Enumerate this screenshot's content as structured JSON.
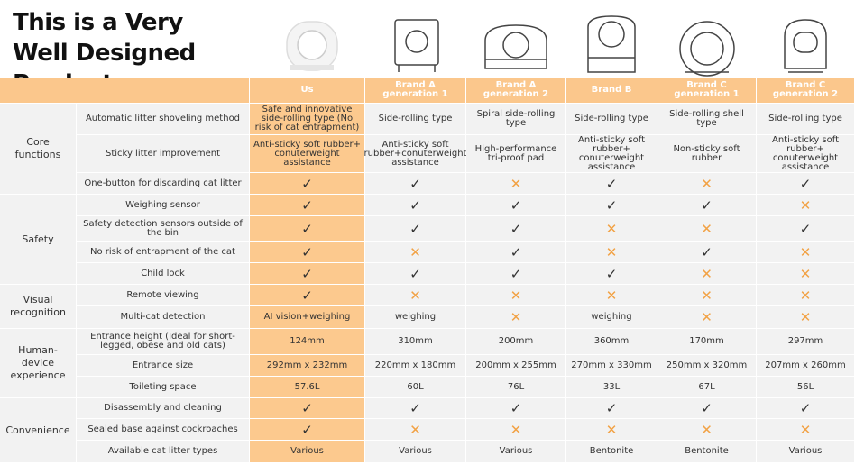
{
  "header": {
    "title": "This is a Very Well Designed Product"
  },
  "table": {
    "columns": [
      "Us",
      "Brand A generation 1",
      "Brand A generation 2",
      "Brand B",
      "Brand C generation 1",
      "Brand C generation 2"
    ],
    "cross": "✕",
    "cross_color": "#f2a245",
    "text_color": "#333333",
    "groups": [
      {
        "label": "Core functions",
        "rows": [
          {
            "feature": "Automatic litter shoveling method",
            "cells": [
              "Safe and innovative side-rolling type (No risk of cat entrapment)",
              "Side-rolling type",
              "Spiral side-rolling type",
              "Side-rolling type",
              "Side-rolling shell type",
              "Side-rolling type"
            ]
          },
          {
            "feature": "Sticky litter improvement",
            "cells": [
              "Anti-sticky soft rubber+ conuterweight assistance",
              "Anti-sticky soft rubber+conuterweight assistance",
              "High-performance tri-proof pad",
              "Anti-sticky soft rubber+ conuterweight assistance",
              "Non-sticky soft rubber",
              "Anti-sticky soft rubber+ conuterweight assistance"
            ]
          },
          {
            "feature": "One-button for discarding cat litter",
            "cells": [
              "✓",
              "✓",
              "✕",
              "✓",
              "✕",
              "✓"
            ]
          }
        ]
      },
      {
        "label": "Safety",
        "rows": [
          {
            "feature": "Weighing sensor",
            "cells": [
              "✓",
              "✓",
              "✓",
              "✓",
              "✓",
              "✕"
            ]
          },
          {
            "feature": "Safety detection sensors outside of the bin",
            "cells": [
              "✓",
              "✓",
              "✓",
              "✕",
              "✕",
              "✓"
            ]
          },
          {
            "feature": "No risk of entrapment of the cat",
            "cells": [
              "✓",
              "✕",
              "✓",
              "✕",
              "✓",
              "✕"
            ]
          },
          {
            "feature": "Child lock",
            "cells": [
              "✓",
              "✓",
              "✓",
              "✓",
              "✕",
              "✕"
            ]
          }
        ]
      },
      {
        "label": "Visual recognition",
        "rows": [
          {
            "feature": "Remote viewing",
            "cells": [
              "✓",
              "✕",
              "✕",
              "✕",
              "✕",
              "✕"
            ]
          },
          {
            "feature": "Multi-cat detection",
            "cells": [
              "AI vision+weighing",
              "weighing",
              "✕",
              "weighing",
              "✕",
              "✕"
            ]
          }
        ]
      },
      {
        "label": "Human-device experience",
        "rows": [
          {
            "feature": "Entrance height (Ideal for short-legged, obese and old cats)",
            "cells": [
              "124mm",
              "310mm",
              "200mm",
              "360mm",
              "170mm",
              "297mm"
            ]
          },
          {
            "feature": "Entrance size",
            "cells": [
              "292mm x 232mm",
              "220mm x 180mm",
              "200mm x 255mm",
              "270mm x 330mm",
              "250mm x 320mm",
              "207mm x 260mm"
            ]
          },
          {
            "feature": "Toileting space",
            "cells": [
              "57.6L",
              "60L",
              "76L",
              "33L",
              "67L",
              "56L"
            ]
          }
        ]
      },
      {
        "label": "Convenience",
        "rows": [
          {
            "feature": "Disassembly and cleaning",
            "cells": [
              "✓",
              "✓",
              "✓",
              "✓",
              "✓",
              "✓"
            ]
          },
          {
            "feature": "Sealed base against cockroaches",
            "cells": [
              "✓",
              "✕",
              "✕",
              "✕",
              "✕",
              "✕"
            ]
          },
          {
            "feature": "Available cat litter types",
            "cells": [
              "Various",
              "Various",
              "Various",
              "Bentonite",
              "Bentonite",
              "Various"
            ]
          }
        ]
      }
    ]
  }
}
